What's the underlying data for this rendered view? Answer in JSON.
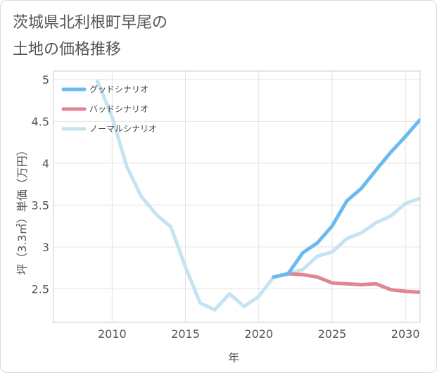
{
  "title_lines": [
    "茨城県北利根町早尾の",
    "土地の価格推移"
  ],
  "chart_data": {
    "type": "line",
    "title": "茨城県北利根町早尾の土地の価格推移",
    "xlabel": "年",
    "ylabel": "坪（3.3㎡）単価（万円）",
    "xlim": [
      2006,
      2031
    ],
    "ylim": [
      2.1,
      5.1
    ],
    "x_ticks": [
      2010,
      2015,
      2020,
      2025,
      2030
    ],
    "y_ticks": [
      2.5,
      3,
      3.5,
      4,
      4.5,
      5
    ],
    "grid": true,
    "legend_position": "top-left",
    "series": [
      {
        "name": "グッドシナリオ",
        "color": "#6bb9ef",
        "x": [
          2021,
          2022,
          2023,
          2024,
          2025,
          2026,
          2027,
          2028,
          2029,
          2030,
          2031
        ],
        "y": [
          2.64,
          2.68,
          2.93,
          3.05,
          3.25,
          3.55,
          3.7,
          3.92,
          4.13,
          4.32,
          4.52
        ]
      },
      {
        "name": "バッドシナリオ",
        "color": "#e0868e",
        "x": [
          2021,
          2022,
          2023,
          2024,
          2025,
          2026,
          2027,
          2028,
          2029,
          2030,
          2031
        ],
        "y": [
          2.64,
          2.68,
          2.67,
          2.64,
          2.57,
          2.56,
          2.55,
          2.56,
          2.49,
          2.47,
          2.46
        ]
      },
      {
        "name": "ノーマルシナリオ",
        "color": "#c5e3f1",
        "x": [
          2009,
          2010,
          2011,
          2012,
          2013,
          2014,
          2015,
          2016,
          2017,
          2018,
          2019,
          2020,
          2021,
          2022,
          2023,
          2024,
          2025,
          2026,
          2027,
          2028,
          2029,
          2030,
          2031
        ],
        "y": [
          4.98,
          4.55,
          3.96,
          3.6,
          3.39,
          3.24,
          2.76,
          2.33,
          2.25,
          2.44,
          2.29,
          2.41,
          2.64,
          2.68,
          2.73,
          2.89,
          2.94,
          3.1,
          3.17,
          3.29,
          3.37,
          3.52,
          3.58
        ]
      }
    ]
  }
}
